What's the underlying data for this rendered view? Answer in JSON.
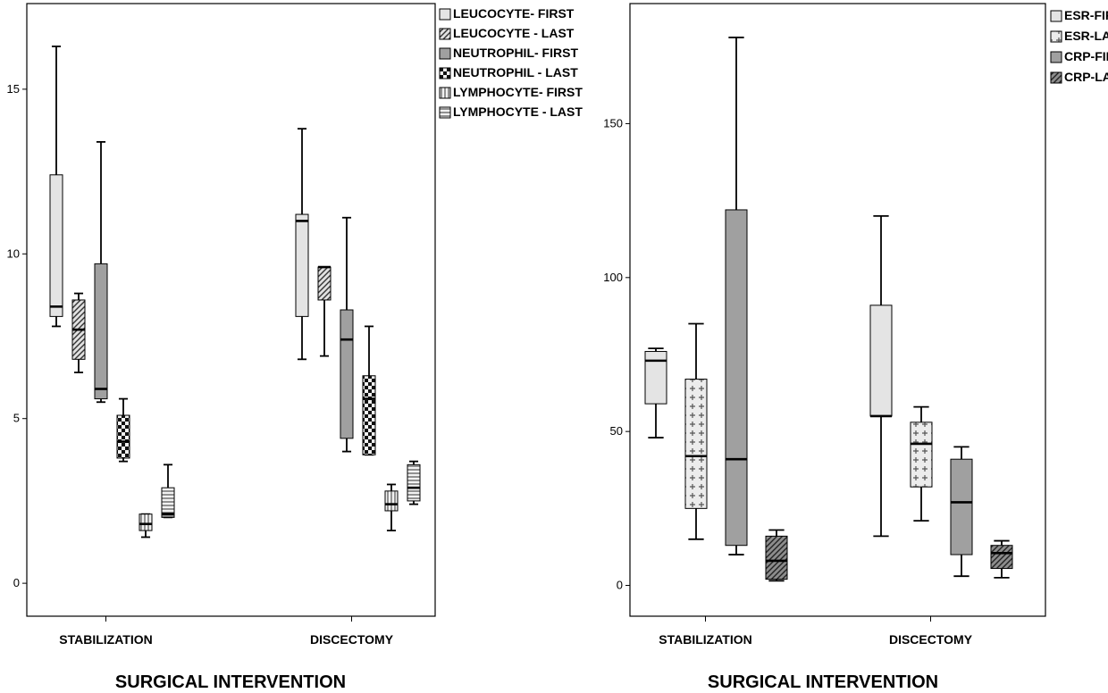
{
  "charts": [
    {
      "id": "left",
      "chart_data": {
        "type": "boxplot",
        "xlabel": "SURGICAL INTERVENTION",
        "ylabel": "",
        "ylim": [
          -1.0,
          17.6
        ],
        "y_ticks": [
          0,
          5,
          10,
          15
        ],
        "grid": false,
        "legend_position": "right, outside top",
        "categories": [
          "STABILIZATION",
          "DISCECTOMY"
        ],
        "series": [
          {
            "name": "LEUCOCYTE- FIRST",
            "fill": "#e4e4e4",
            "pattern": "none",
            "boxes": [
              {
                "min": 7.8,
                "q1": 8.1,
                "median": 8.4,
                "q3": 12.4,
                "max": 16.3
              },
              {
                "min": 6.8,
                "q1": 8.1,
                "median": 11.0,
                "q3": 11.2,
                "max": 13.8
              }
            ]
          },
          {
            "name": "LEUCOCYTE - LAST",
            "fill": "#d0d0d0",
            "pattern": "diag",
            "boxes": [
              {
                "min": 6.4,
                "q1": 6.8,
                "median": 7.7,
                "q3": 8.6,
                "max": 8.8
              },
              {
                "min": 6.9,
                "q1": 8.6,
                "median": 9.6,
                "q3": 9.6,
                "max": 9.6
              }
            ]
          },
          {
            "name": "NEUTROPHIL- FIRST",
            "fill": "#a0a0a0",
            "pattern": "none",
            "boxes": [
              {
                "min": 5.5,
                "q1": 5.6,
                "median": 5.9,
                "q3": 9.7,
                "max": 13.4
              },
              {
                "min": 4.0,
                "q1": 4.4,
                "median": 7.4,
                "q3": 8.3,
                "max": 11.1
              }
            ]
          },
          {
            "name": "NEUTROPHIL - LAST",
            "fill": "#3a3a3a",
            "pattern": "check",
            "boxes": [
              {
                "min": 3.7,
                "q1": 3.8,
                "median": 4.3,
                "q3": 5.1,
                "max": 5.6
              },
              {
                "min": 3.9,
                "q1": 3.9,
                "median": 5.6,
                "q3": 6.3,
                "max": 7.8
              }
            ]
          },
          {
            "name": "LYMPHOCYTE- FIRST",
            "fill": "#f2f2f2",
            "pattern": "vert",
            "boxes": [
              {
                "min": 1.4,
                "q1": 1.6,
                "median": 1.8,
                "q3": 2.1,
                "max": 2.1
              },
              {
                "min": 1.6,
                "q1": 2.2,
                "median": 2.4,
                "q3": 2.8,
                "max": 3.0
              }
            ]
          },
          {
            "name": "LYMPHOCYTE - LAST",
            "fill": "#f2f2f2",
            "pattern": "horiz",
            "boxes": [
              {
                "min": 2.0,
                "q1": 2.0,
                "median": 2.1,
                "q3": 2.9,
                "max": 3.6
              },
              {
                "min": 2.4,
                "q1": 2.5,
                "median": 2.9,
                "q3": 3.6,
                "max": 3.7
              }
            ]
          }
        ]
      }
    },
    {
      "id": "right",
      "chart_data": {
        "type": "boxplot",
        "xlabel": "SURGICAL INTERVENTION",
        "ylabel": "",
        "ylim": [
          -10,
          189
        ],
        "y_ticks": [
          0,
          50,
          100,
          150
        ],
        "grid": false,
        "legend_position": "right, outside top",
        "categories": [
          "STABILIZATION",
          "DISCECTOMY"
        ],
        "series": [
          {
            "name": "ESR-FIRST",
            "fill": "#e4e4e4",
            "pattern": "none",
            "boxes": [
              {
                "min": 48,
                "q1": 59,
                "median": 73,
                "q3": 76,
                "max": 77
              },
              {
                "min": 16,
                "q1": 55,
                "median": 55,
                "q3": 91,
                "max": 120
              }
            ]
          },
          {
            "name": "ESR-LAST",
            "fill": "#e8e8e8",
            "pattern": "cross",
            "boxes": [
              {
                "min": 15,
                "q1": 25,
                "median": 42,
                "q3": 67,
                "max": 85
              },
              {
                "min": 21,
                "q1": 32,
                "median": 46,
                "q3": 53,
                "max": 58
              }
            ]
          },
          {
            "name": "CRP-FIRST",
            "fill": "#a0a0a0",
            "pattern": "none",
            "boxes": [
              {
                "min": 10,
                "q1": 13,
                "median": 41,
                "q3": 122,
                "max": 178
              },
              {
                "min": 3,
                "q1": 10,
                "median": 27,
                "q3": 41,
                "max": 45
              }
            ]
          },
          {
            "name": "CRP-LAST",
            "fill": "#909090",
            "pattern": "diag",
            "boxes": [
              {
                "min": 1.5,
                "q1": 2,
                "median": 8,
                "q3": 16,
                "max": 18
              },
              {
                "min": 2.5,
                "q1": 5.5,
                "median": 10.5,
                "q3": 13,
                "max": 14.5
              }
            ]
          }
        ]
      }
    }
  ],
  "style": {
    "axis_color": "#000000",
    "box_stroke": "#000000"
  }
}
